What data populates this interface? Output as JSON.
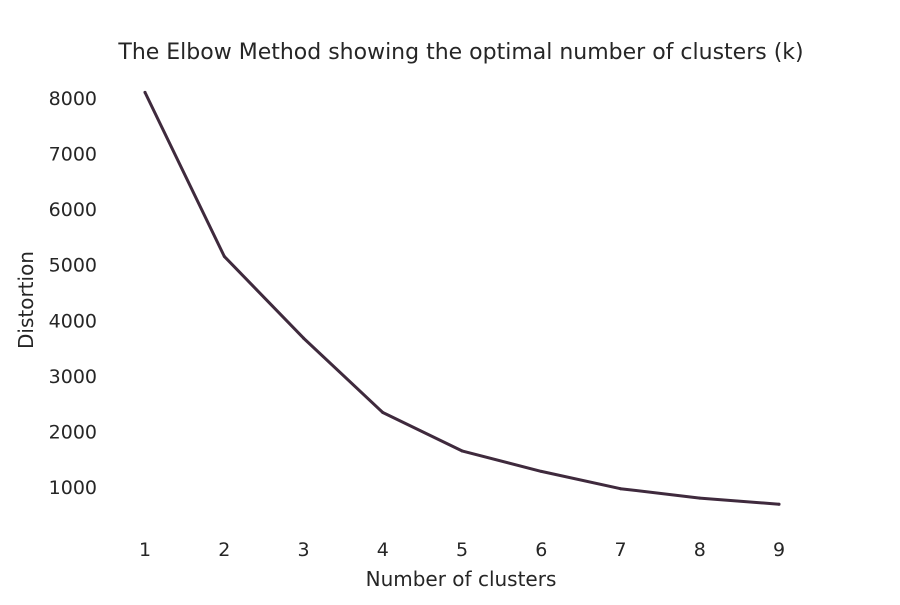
{
  "chart_data": {
    "type": "line",
    "title": "The Elbow Method showing the optimal number of clusters (k)",
    "xlabel": "Number of clusters",
    "ylabel": "Distortion",
    "x": [
      1,
      2,
      3,
      4,
      5,
      6,
      7,
      8,
      9
    ],
    "series": [
      {
        "values": [
          8100,
          5150,
          3680,
          2340,
          1650,
          1280,
          970,
          800,
          690
        ]
      }
    ],
    "xticks": [
      "1",
      "2",
      "3",
      "4",
      "5",
      "6",
      "7",
      "8",
      "9"
    ],
    "yticks": [
      "1000",
      "2000",
      "3000",
      "4000",
      "5000",
      "6000",
      "7000",
      "8000"
    ],
    "xlim": [
      1,
      9
    ],
    "ylim": [
      1000,
      8000
    ],
    "grid": false,
    "line_color": "#3f2a3d"
  }
}
